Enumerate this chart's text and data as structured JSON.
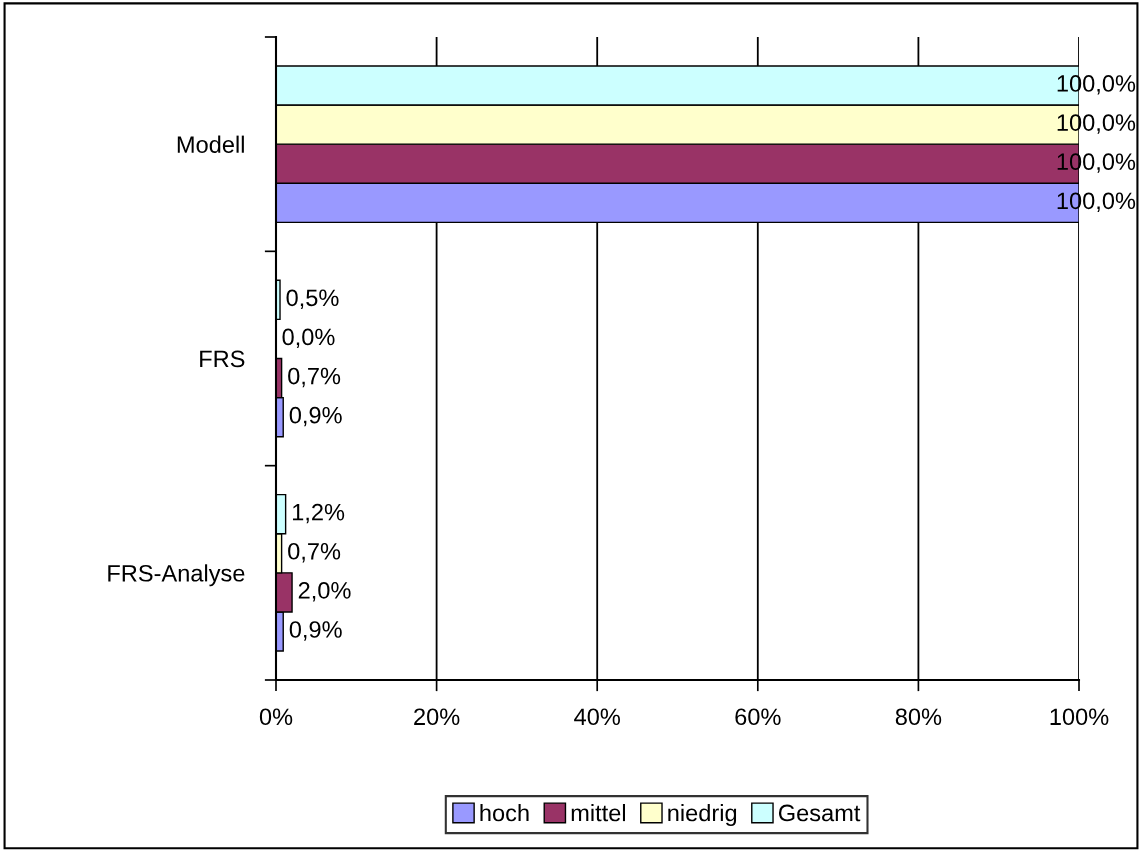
{
  "chart_data": {
    "type": "bar",
    "orientation": "horizontal",
    "categories": [
      "Modell",
      "FRS",
      "FRS-Analyse"
    ],
    "series": [
      {
        "name": "hoch",
        "color": "#9999ff",
        "values": [
          100.0,
          0.9,
          0.9
        ],
        "value_labels": [
          "100,0%",
          "0,9%",
          "0,9%"
        ]
      },
      {
        "name": "mittel",
        "color": "#993366",
        "values": [
          100.0,
          0.7,
          2.0
        ],
        "value_labels": [
          "100,0%",
          "0,7%",
          "2,0%"
        ]
      },
      {
        "name": "niedrig",
        "color": "#ffffcc",
        "values": [
          100.0,
          0.0,
          0.7
        ],
        "value_labels": [
          "100,0%",
          "0,0%",
          "0,7%"
        ]
      },
      {
        "name": "Gesamt",
        "color": "#ccffff",
        "values": [
          100.0,
          0.5,
          1.2
        ],
        "value_labels": [
          "100,0%",
          "0,5%",
          "1,2%"
        ]
      }
    ],
    "xlim": [
      0,
      100
    ],
    "xticks": [
      {
        "value": 0,
        "label": "0%"
      },
      {
        "value": 20,
        "label": "20%"
      },
      {
        "value": 40,
        "label": "40%"
      },
      {
        "value": 60,
        "label": "60%"
      },
      {
        "value": 80,
        "label": "80%"
      },
      {
        "value": 100,
        "label": "100%"
      }
    ],
    "grid": "x",
    "legend": "bottom"
  }
}
